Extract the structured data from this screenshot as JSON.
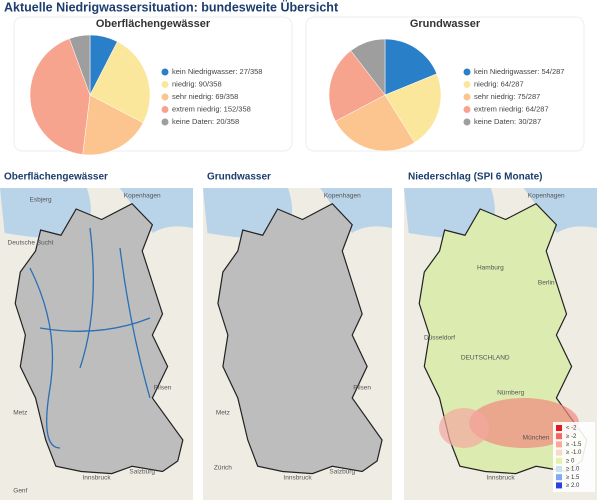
{
  "header": {
    "title": "Aktuelle Niedrigwassersituation: bundesweite Übersicht"
  },
  "chart_data": [
    {
      "type": "pie",
      "title": "Oberflächengewässer",
      "categories": [
        "kein Niedrigwasser: 27/358",
        "niedrig: 90/358",
        "sehr niedrig: 69/358",
        "extrem niedrig: 152/358",
        "keine Daten: 20/358"
      ],
      "values": [
        27,
        90,
        69,
        152,
        20
      ],
      "colors": [
        "#2a7fc9",
        "#fbe79b",
        "#fcc48f",
        "#f7a48f",
        "#9e9e9e"
      ]
    },
    {
      "type": "pie",
      "title": "Grundwasser",
      "categories": [
        "kein Niedrigwasser: 54/287",
        "niedrig: 64/287",
        "sehr niedrig: 75/287",
        "extrem niedrig: 64/287",
        "keine Daten: 30/287"
      ],
      "values": [
        54,
        64,
        75,
        64,
        30
      ],
      "colors": [
        "#2a7fc9",
        "#fbe79b",
        "#fcc48f",
        "#f7a48f",
        "#9e9e9e"
      ]
    }
  ],
  "maps": [
    {
      "title": "Oberflächengewässer",
      "places": [
        "Esbjerg",
        "Kopenhagen",
        "Deutsche Bucht",
        "Pilsen",
        "Metz",
        "Innsbruck",
        "Salzburg",
        "Genf"
      ]
    },
    {
      "title": "Grundwasser",
      "places": [
        "Kopenhagen",
        "Pilsen",
        "Metz",
        "Innsbruck",
        "Salzburg",
        "Zürich"
      ]
    },
    {
      "title": "Niederschlag (SPI 6 Monate)",
      "places": [
        "Kopenhagen",
        "Hamburg",
        "Berlin",
        "Düsseldorf",
        "DEUTSCHLAND",
        "Nürnberg",
        "München",
        "Innsbruck"
      ],
      "legend": {
        "labels": [
          "< -2",
          "≥ -2",
          "≥ -1.5",
          "≥ -1.0",
          "≥ 0",
          "≥ 1.0",
          "≥ 1.5",
          "≥ 2.0"
        ],
        "colors": [
          "#e31a1c",
          "#f4665e",
          "#f9a99c",
          "#fbd7c8",
          "#e5f0a8",
          "#c4e3f4",
          "#7fa8f5",
          "#2d3fe0"
        ]
      }
    }
  ]
}
